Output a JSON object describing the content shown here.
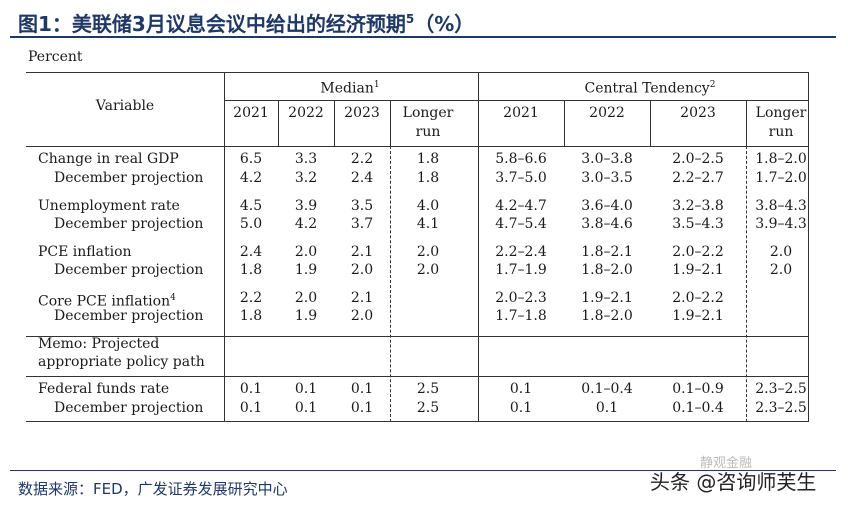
{
  "title": {
    "text": "图1：美联储3月议息会议中给出的经济预期",
    "sup": "5",
    "suffix": "（%）"
  },
  "unit_label": "Percent",
  "header": {
    "variable": "Variable",
    "median": "Median",
    "median_sup": "1",
    "central": "Central Tendency",
    "central_sup": "2",
    "years": [
      "2021",
      "2022",
      "2023"
    ],
    "longer_run_1": "Longer",
    "longer_run_2": "run"
  },
  "rows": [
    {
      "label": "Change in real GDP",
      "sup": "",
      "median": [
        "6.5",
        "3.3",
        "2.2",
        "1.8"
      ],
      "central": [
        "5.8–6.6",
        "3.0–3.8",
        "2.0–2.5",
        "1.8–2.0"
      ]
    },
    {
      "label": "December projection",
      "sup": "",
      "median": [
        "4.2",
        "3.2",
        "2.4",
        "1.8"
      ],
      "central": [
        "3.7–5.0",
        "3.0–3.5",
        "2.2–2.7",
        "1.7–2.0"
      ]
    },
    {
      "label": "Unemployment rate",
      "sup": "",
      "median": [
        "4.5",
        "3.9",
        "3.5",
        "4.0"
      ],
      "central": [
        "4.2–4.7",
        "3.6–4.0",
        "3.2–3.8",
        "3.8–4.3"
      ]
    },
    {
      "label": "December projection",
      "sup": "",
      "median": [
        "5.0",
        "4.2",
        "3.7",
        "4.1"
      ],
      "central": [
        "4.7–5.4",
        "3.8–4.6",
        "3.5–4.3",
        "3.9–4.3"
      ]
    },
    {
      "label": "PCE inflation",
      "sup": "",
      "median": [
        "2.4",
        "2.0",
        "2.1",
        "2.0"
      ],
      "central": [
        "2.2–2.4",
        "1.8–2.1",
        "2.0–2.2",
        "2.0"
      ]
    },
    {
      "label": "December projection",
      "sup": "",
      "median": [
        "1.8",
        "1.9",
        "2.0",
        "2.0"
      ],
      "central": [
        "1.7–1.9",
        "1.8–2.0",
        "1.9–2.1",
        "2.0"
      ]
    },
    {
      "label": "Core PCE inflation",
      "sup": "4",
      "median": [
        "2.2",
        "2.0",
        "2.1",
        ""
      ],
      "central": [
        "2.0–2.3",
        "1.9–2.1",
        "2.0–2.2",
        ""
      ]
    },
    {
      "label": "December projection",
      "sup": "",
      "median": [
        "1.8",
        "1.9",
        "2.0",
        ""
      ],
      "central": [
        "1.7–1.8",
        "1.8–2.0",
        "1.9–2.1",
        ""
      ]
    },
    {
      "label": "Federal funds rate",
      "sup": "",
      "median": [
        "0.1",
        "0.1",
        "0.1",
        "2.5"
      ],
      "central": [
        "0.1",
        "0.1–0.4",
        "0.1–0.9",
        "2.3–2.5"
      ]
    },
    {
      "label": "December projection",
      "sup": "",
      "median": [
        "0.1",
        "0.1",
        "0.1",
        "2.5"
      ],
      "central": [
        "0.1",
        "0.1",
        "0.1–0.4",
        "2.3–2.5"
      ]
    }
  ],
  "memo": {
    "line1": "Memo: Projected",
    "line2": "appropriate policy path"
  },
  "source": "数据来源：FED，广发证券发展研究中心",
  "watermark": "头条 @咨询师芙生",
  "watermark_faint": "静观金融",
  "colors": {
    "title": "#1f3864",
    "rule": "#333333"
  }
}
